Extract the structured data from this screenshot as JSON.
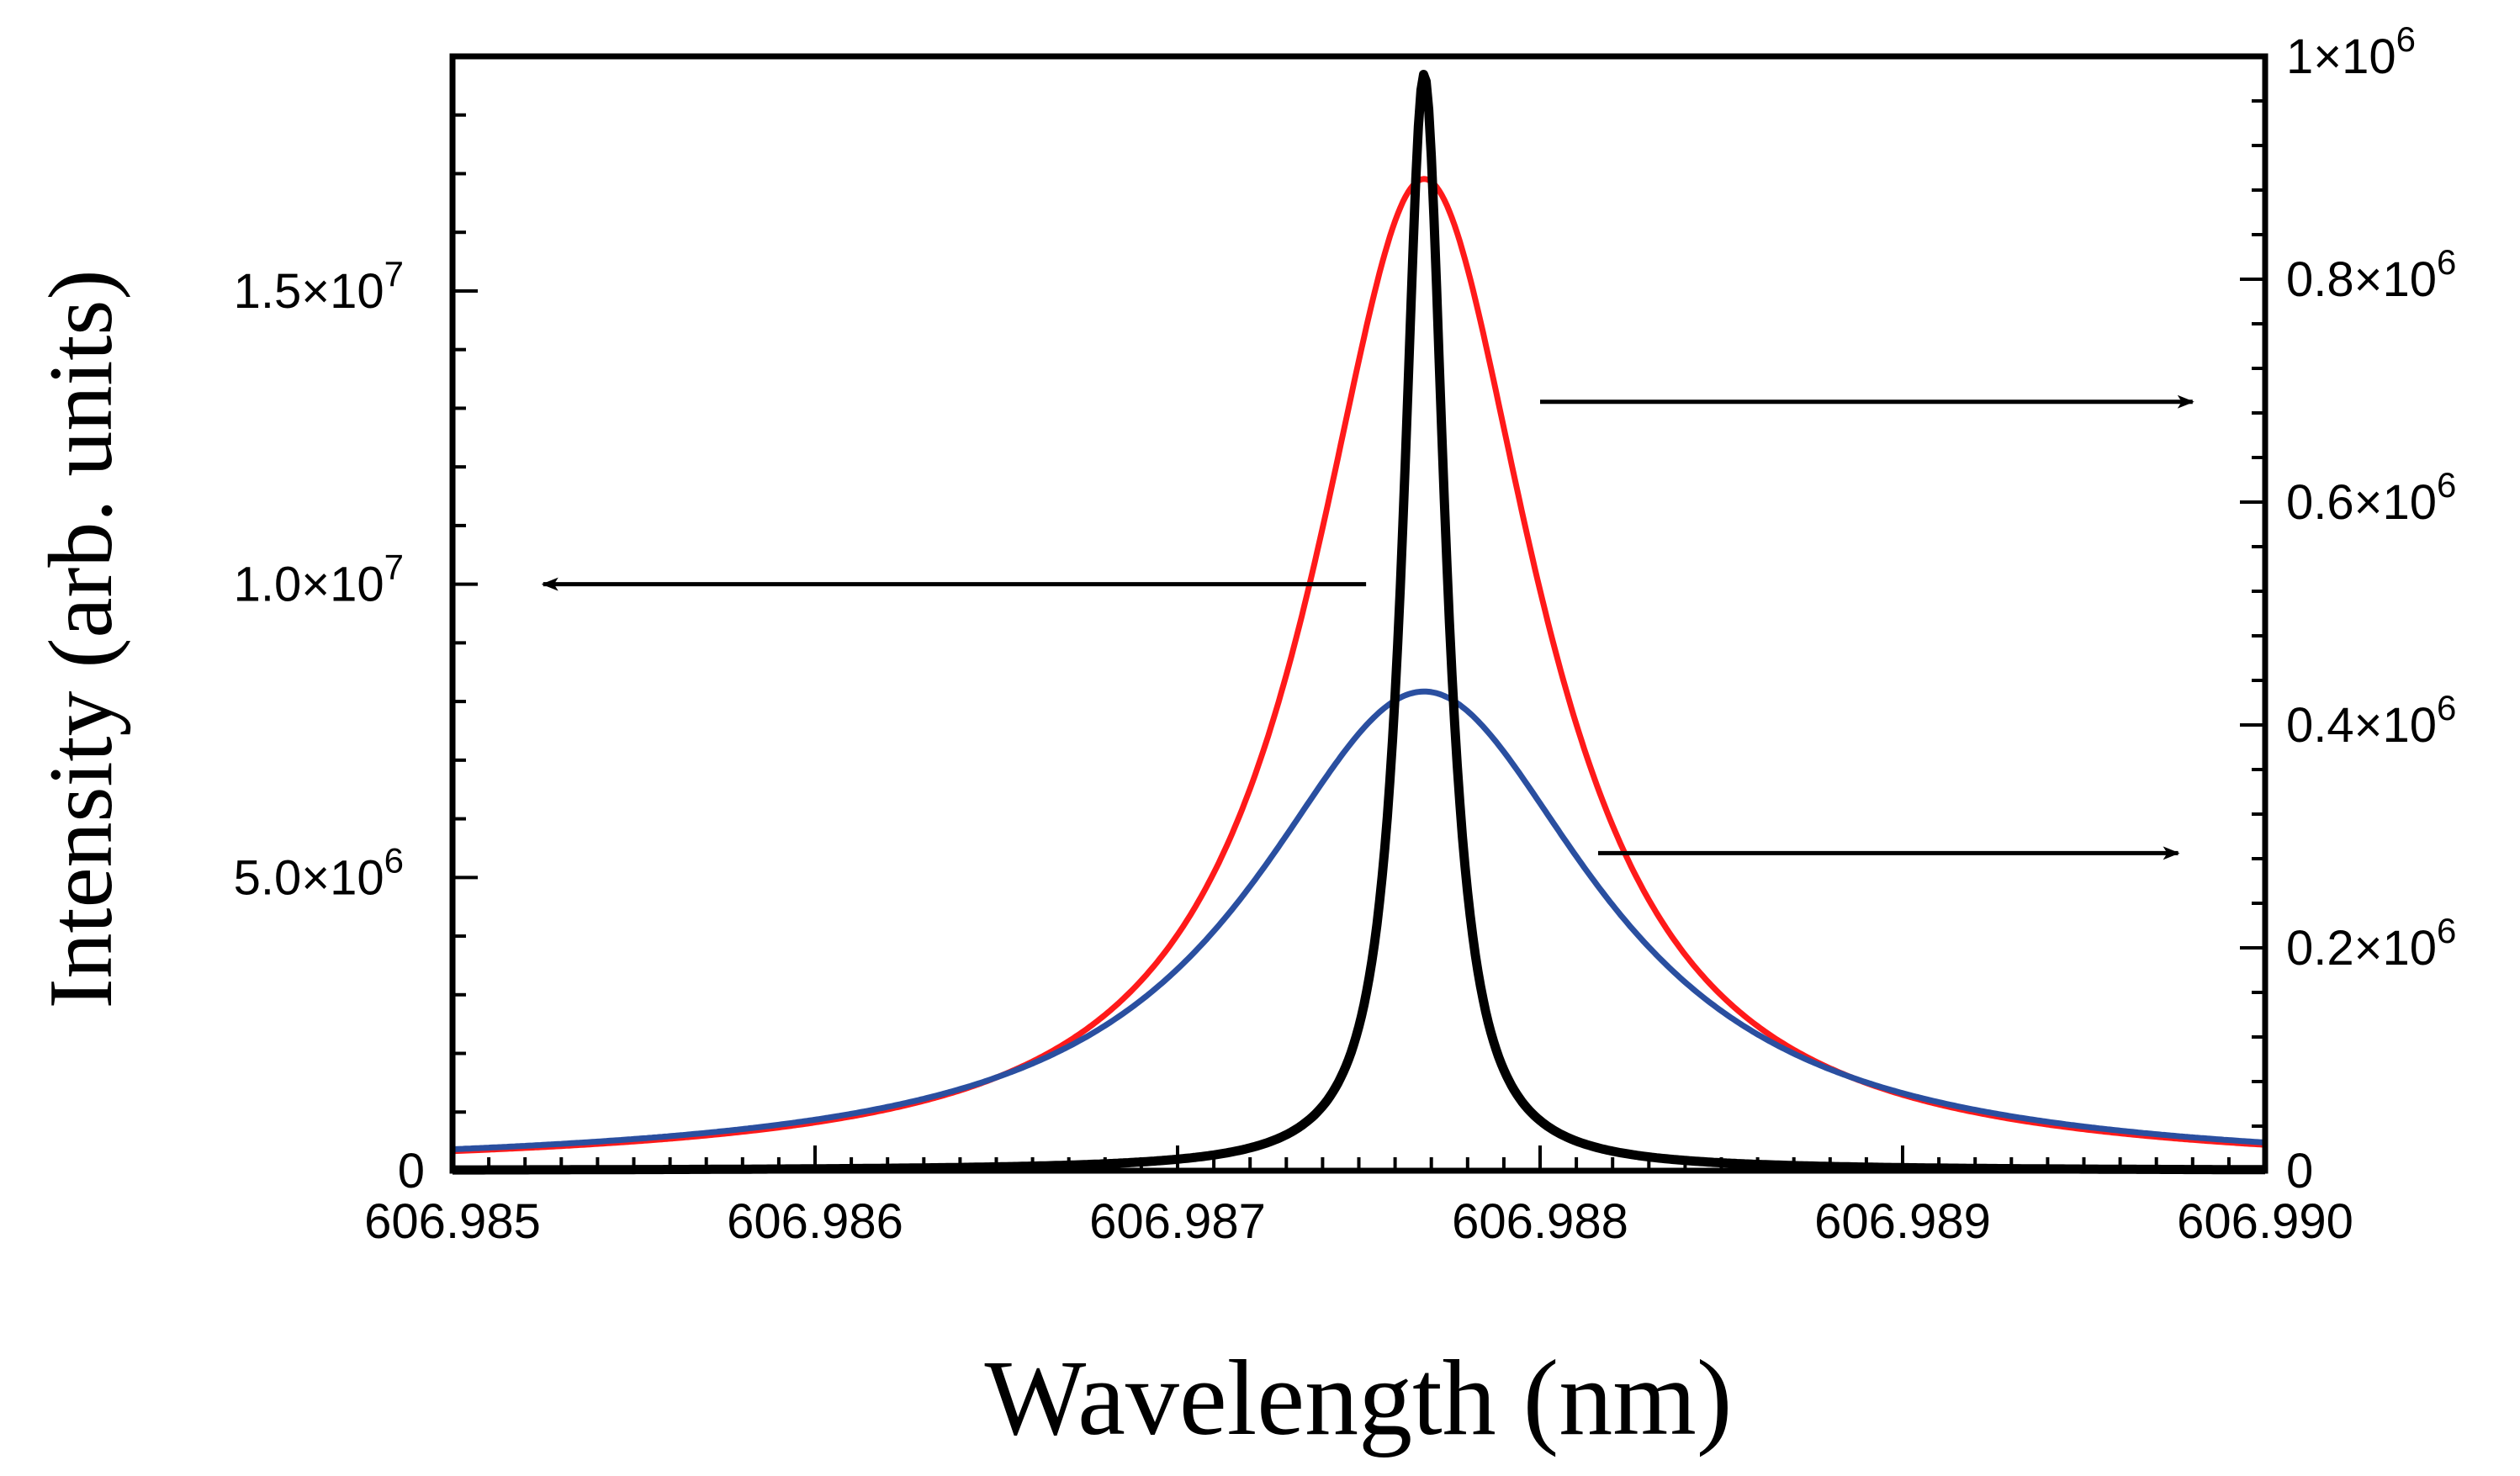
{
  "chart_data": {
    "type": "line",
    "title": "",
    "xlabel": "Wavelength (nm)",
    "ylabel": "Intensity (arb. units)",
    "xlim": [
      606.985,
      606.99
    ],
    "ylim": [
      0,
      19000000
    ],
    "y2lim": [
      0,
      1000000
    ],
    "grid": false,
    "legend": "none",
    "x_ticks": [
      {
        "value": 606.985,
        "label": "606.985"
      },
      {
        "value": 606.986,
        "label": "606.986"
      },
      {
        "value": 606.987,
        "label": "606.987"
      },
      {
        "value": 606.988,
        "label": "606.988"
      },
      {
        "value": 606.989,
        "label": "606.989"
      },
      {
        "value": 606.99,
        "label": "606.990"
      }
    ],
    "y_ticks": [
      {
        "value": 0,
        "mant": "0",
        "exp": ""
      },
      {
        "value": 5000000,
        "mant": "5.0×10",
        "exp": "6"
      },
      {
        "value": 10000000,
        "mant": "1.0×10",
        "exp": "7"
      },
      {
        "value": 15000000,
        "mant": "1.5×10",
        "exp": "7"
      }
    ],
    "y2_ticks": [
      {
        "value": 0,
        "mant": "0",
        "exp": ""
      },
      {
        "value": 200000,
        "mant": "0.2×10",
        "exp": "6"
      },
      {
        "value": 400000,
        "mant": "0.4×10",
        "exp": "6"
      },
      {
        "value": 600000,
        "mant": "0.6×10",
        "exp": "6"
      },
      {
        "value": 800000,
        "mant": "0.8×10",
        "exp": "6"
      },
      {
        "value": 1000000,
        "mant": "1×10",
        "exp": "6"
      }
    ],
    "series": [
      {
        "name": "red",
        "color": "#ff1a1a",
        "axis": "right",
        "center": 606.98768,
        "peak": 890000,
        "hwhm": 0.00038,
        "baseline": 0
      },
      {
        "name": "blue",
        "color": "#2a4fa0",
        "axis": "right",
        "center": 606.98768,
        "peak": 430000,
        "hwhm": 0.00058,
        "baseline": 0
      },
      {
        "name": "black",
        "color": "#000000",
        "axis": "left",
        "center": 606.98768,
        "peak": 18700000,
        "hwhm": 7e-05,
        "baseline": 0
      }
    ],
    "annotations": [
      {
        "type": "arrow",
        "target_axis": "left",
        "x_from": 606.98752,
        "x_to": 606.98525,
        "y": 10000000
      },
      {
        "type": "arrow",
        "target_axis": "right",
        "x_from": 606.988,
        "x_to": 606.9898,
        "y": 690000
      },
      {
        "type": "arrow",
        "target_axis": "right",
        "x_from": 606.98816,
        "x_to": 606.98976,
        "y": 285000
      }
    ]
  }
}
